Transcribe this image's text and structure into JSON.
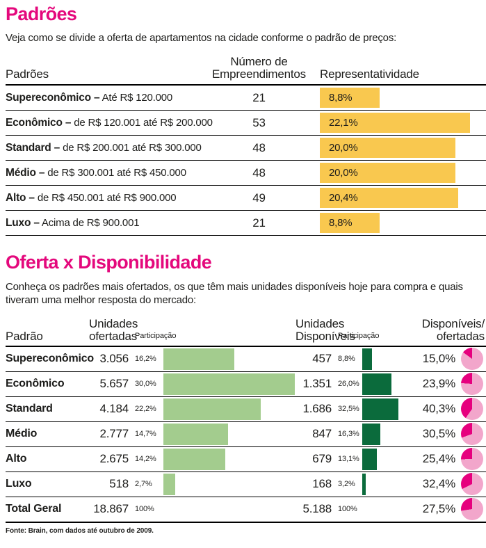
{
  "colors": {
    "magenta": "#e4087c",
    "bar_yellow": "#f9c84f",
    "bar_light_green": "#a3cc8e",
    "bar_dark_green": "#0b6b3c",
    "pie_light_pink": "#f2a6cb",
    "pie_magenta": "#e6007e"
  },
  "section1": {
    "title": "Padrões",
    "subtitle": "Veja como se divide a oferta de apartamentos na cidade conforme o padrão de preços:",
    "table": {
      "header_col1": "Padrões",
      "header_col2_line1": "Número de",
      "header_col2_line2": "Empreendimentos",
      "header_col3": "Representatividade",
      "rows": [
        {
          "label_bold": "Supereconômico –",
          "label_rest": "Até R$ 120.000",
          "count": "21",
          "pct_label": "8,8%",
          "pct_value": 8.8
        },
        {
          "label_bold": "Econômico –",
          "label_rest": "de R$ 120.001 até R$ 200.000",
          "count": "53",
          "pct_label": "22,1%",
          "pct_value": 22.1
        },
        {
          "label_bold": "Standard –",
          "label_rest": "de R$ 200.001 até R$ 300.000",
          "count": "48",
          "pct_label": "20,0%",
          "pct_value": 20.0
        },
        {
          "label_bold": "Médio –",
          "label_rest": "de R$ 300.001 até R$ 450.000",
          "count": "48",
          "pct_label": "20,0%",
          "pct_value": 20.0
        },
        {
          "label_bold": "Alto –",
          "label_rest": "de R$ 450.001 até R$ 900.000",
          "count": "49",
          "pct_label": "20,4%",
          "pct_value": 20.4
        },
        {
          "label_bold": "Luxo –",
          "label_rest": "Acima de R$ 900.001",
          "count": "21",
          "pct_label": "8,8%",
          "pct_value": 8.8
        }
      ]
    }
  },
  "section2": {
    "title": "Oferta x Disponibilidade",
    "subtitle": "Conheça os padrões mais ofertados, os que têm mais unidades disponíveis hoje para compra e quais tiveram uma melhor resposta do mercado:",
    "table": {
      "header_col1": "Padrão",
      "header_offered_line1": "Unidades",
      "header_offered_line2": "ofertadas",
      "header_participacao1": "Participação",
      "header_available_line1": "Unidades",
      "header_available_line2": "Disponíveis",
      "header_participacao2": "Participação",
      "header_ratio_line1": "Disponíveis/",
      "header_ratio_line2": "ofertadas",
      "rows": [
        {
          "name": "Supereconômico",
          "offered": "3.056",
          "offered_share": "16,2%",
          "offered_share_value": 16.2,
          "available": "457",
          "available_share": "8,8%",
          "available_share_value": 8.8,
          "ratio": "15,0%",
          "ratio_value": 15.0
        },
        {
          "name": "Econômico",
          "offered": "5.657",
          "offered_share": "30,0%",
          "offered_share_value": 30.0,
          "available": "1.351",
          "available_share": "26,0%",
          "available_share_value": 26.0,
          "ratio": "23,9%",
          "ratio_value": 23.9
        },
        {
          "name": "Standard",
          "offered": "4.184",
          "offered_share": "22,2%",
          "offered_share_value": 22.2,
          "available": "1.686",
          "available_share": "32,5%",
          "available_share_value": 32.5,
          "ratio": "40,3%",
          "ratio_value": 40.3
        },
        {
          "name": "Médio",
          "offered": "2.777",
          "offered_share": "14,7%",
          "offered_share_value": 14.7,
          "available": "847",
          "available_share": "16,3%",
          "available_share_value": 16.3,
          "ratio": "30,5%",
          "ratio_value": 30.5
        },
        {
          "name": "Alto",
          "offered": "2.675",
          "offered_share": "14,2%",
          "offered_share_value": 14.2,
          "available": "679",
          "available_share": "13,1%",
          "available_share_value": 13.1,
          "ratio": "25,4%",
          "ratio_value": 25.4
        },
        {
          "name": "Luxo",
          "offered": "518",
          "offered_share": "2,7%",
          "offered_share_value": 2.7,
          "available": "168",
          "available_share": "3,2%",
          "available_share_value": 3.2,
          "ratio": "32,4%",
          "ratio_value": 32.4
        }
      ],
      "total": {
        "name": "Total Geral",
        "offered": "18.867",
        "offered_share": "100%",
        "available": "5.188",
        "available_share": "100%",
        "ratio": "27,5%",
        "ratio_value": 27.5
      }
    }
  },
  "footer": {
    "source": "Fonte: Brain, com dados até outubro de 2009."
  },
  "chart_data": [
    {
      "type": "bar",
      "title": "Padrões — Representatividade",
      "orientation": "horizontal",
      "categories": [
        "Supereconômico – Até R$ 120.000",
        "Econômico – de R$ 120.001 até R$ 200.000",
        "Standard – de R$ 200.001 até R$ 300.000",
        "Médio – de R$ 300.001 até R$ 450.000",
        "Alto – de R$ 450.001 até R$ 900.000",
        "Luxo – Acima de R$ 900.001"
      ],
      "series": [
        {
          "name": "Número de Empreendimentos",
          "values": [
            21,
            53,
            48,
            48,
            49,
            21
          ]
        },
        {
          "name": "Representatividade (%)",
          "values": [
            8.8,
            22.1,
            20.0,
            20.0,
            20.4,
            8.8
          ]
        }
      ],
      "bar_color": "#f9c84f",
      "xlim": [
        0,
        22.1
      ]
    },
    {
      "type": "bar",
      "title": "Oferta x Disponibilidade",
      "orientation": "horizontal",
      "categories": [
        "Supereconômico",
        "Econômico",
        "Standard",
        "Médio",
        "Alto",
        "Luxo",
        "Total Geral"
      ],
      "series": [
        {
          "name": "Unidades ofertadas",
          "values": [
            3056,
            5657,
            4184,
            2777,
            2675,
            518,
            18867
          ]
        },
        {
          "name": "Participação ofertadas (%)",
          "values": [
            16.2,
            30.0,
            22.2,
            14.7,
            14.2,
            2.7,
            100
          ]
        },
        {
          "name": "Unidades disponíveis",
          "values": [
            457,
            1351,
            1686,
            847,
            679,
            168,
            5188
          ]
        },
        {
          "name": "Participação disponíveis (%)",
          "values": [
            8.8,
            26.0,
            32.5,
            16.3,
            13.1,
            3.2,
            100
          ]
        },
        {
          "name": "Disponíveis/ofertadas (%) — pie",
          "values": [
            15.0,
            23.9,
            40.3,
            30.5,
            25.4,
            32.4,
            27.5
          ]
        }
      ],
      "colors": {
        "offered_bar": "#a3cc8e",
        "available_bar": "#0b6b3c",
        "pie_fill": "#e6007e",
        "pie_bg": "#f2a6cb"
      },
      "source": "Fonte: Brain, com dados até outubro de 2009."
    }
  ]
}
